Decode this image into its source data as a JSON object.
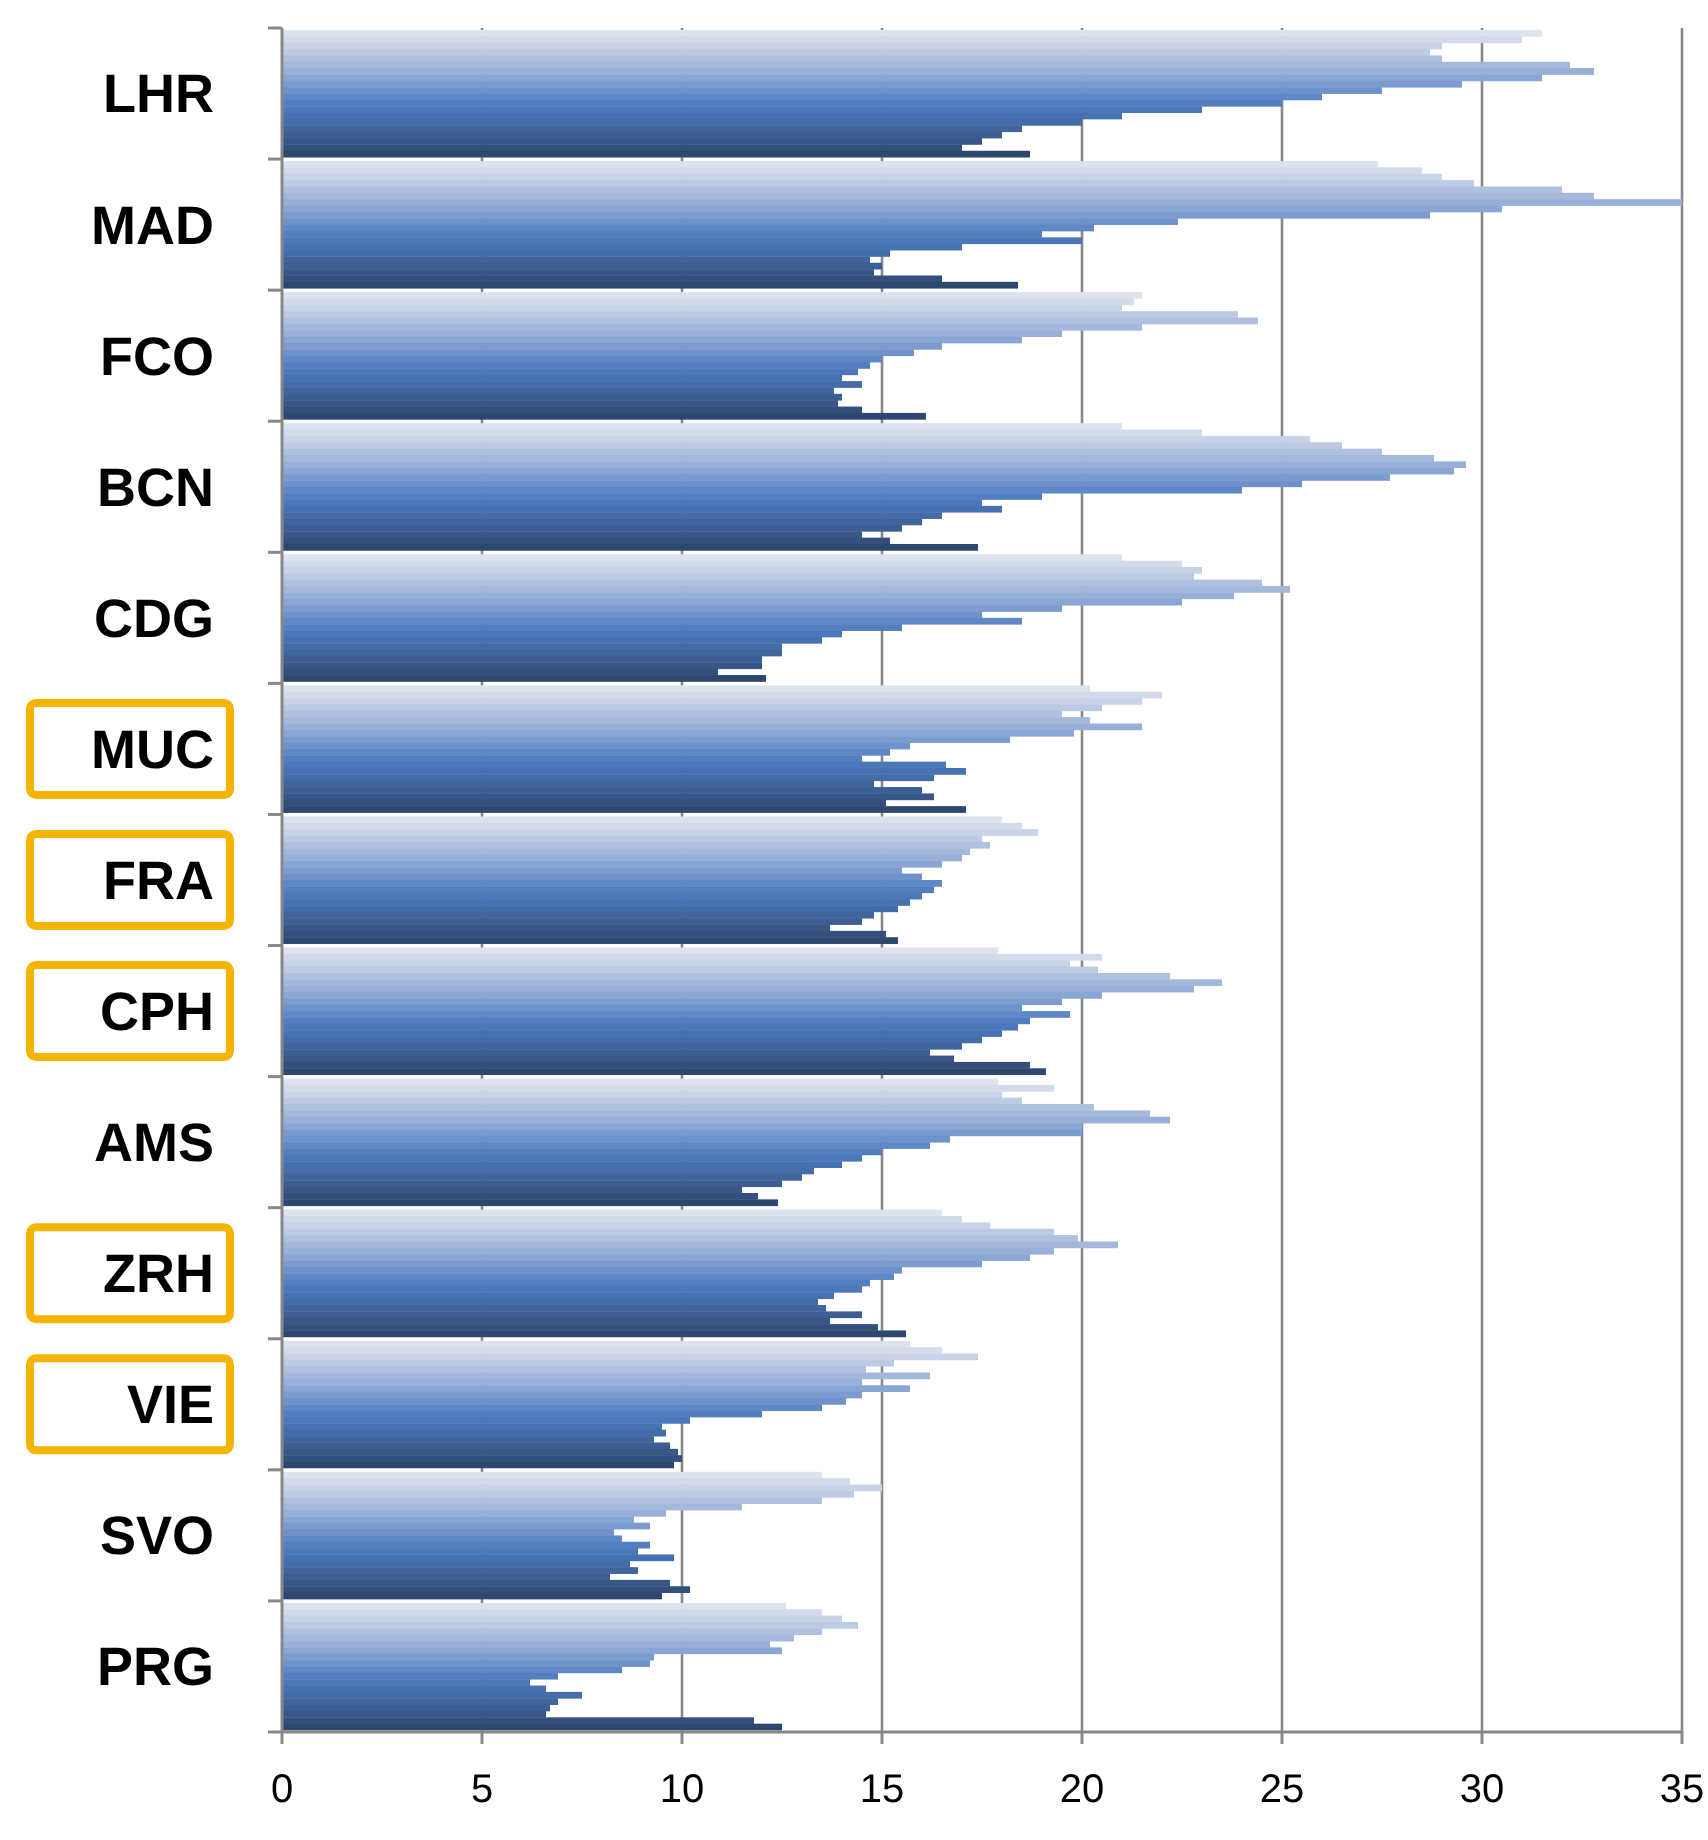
{
  "chart_data": {
    "type": "bar",
    "orientation": "horizontal",
    "categories": [
      "LHR",
      "MAD",
      "FCO",
      "BCN",
      "CDG",
      "MUC",
      "FRA",
      "CPH",
      "AMS",
      "ZRH",
      "VIE",
      "SVO",
      "PRG"
    ],
    "xlim": [
      0,
      35
    ],
    "xticks": [
      0,
      5,
      10,
      15,
      20,
      25,
      30,
      35
    ],
    "grid": "x",
    "series": [
      {
        "color": "#dde3ee",
        "values": [
          31.5,
          27.4,
          21.5,
          21,
          21,
          20.2,
          18,
          17.9,
          17.9,
          16.5,
          15.7,
          13.5,
          12.6
        ]
      },
      {
        "color": "#d3dbeb",
        "values": [
          31,
          28.5,
          21.3,
          23,
          22.5,
          22,
          18.5,
          20.5,
          19.3,
          17,
          16.5,
          14.2,
          13.5
        ]
      },
      {
        "color": "#c8d3e8",
        "values": [
          29,
          29,
          21,
          25.7,
          23,
          21.5,
          18.9,
          19.7,
          18,
          17.7,
          17.4,
          15,
          14
        ]
      },
      {
        "color": "#bccae4",
        "values": [
          28.7,
          29.8,
          23.9,
          26.5,
          22.8,
          20.5,
          17.5,
          20.4,
          18.5,
          19.3,
          15.3,
          14.3,
          14.4
        ]
      },
      {
        "color": "#b0c1e0",
        "values": [
          29,
          32,
          24.4,
          27.5,
          24.5,
          19.5,
          17.7,
          22.2,
          20.3,
          19.9,
          14.6,
          13.5,
          13.5
        ]
      },
      {
        "color": "#a4b8dc",
        "values": [
          32.2,
          32.8,
          21.5,
          28.8,
          25.2,
          20.2,
          17.2,
          23.5,
          21.7,
          20.9,
          16.2,
          11.5,
          12.8
        ]
      },
      {
        "color": "#98afd8",
        "values": [
          32.8,
          35,
          19.5,
          29.6,
          23.8,
          21.5,
          17,
          22.8,
          22.2,
          19.3,
          14.5,
          9.6,
          12.2
        ]
      },
      {
        "color": "#8aa6d4",
        "values": [
          31.5,
          30.5,
          18.5,
          29.3,
          22.5,
          19.8,
          16.5,
          20.5,
          20,
          18.7,
          15.7,
          8.8,
          12.5
        ]
      },
      {
        "color": "#7c9cd0",
        "values": [
          29.5,
          28.7,
          16.5,
          27.7,
          19.5,
          18.2,
          15.5,
          19.5,
          20,
          17.5,
          14.5,
          9.2,
          9.3
        ]
      },
      {
        "color": "#6e92cb",
        "values": [
          27.5,
          22.4,
          15.8,
          25.5,
          17.5,
          15.7,
          16,
          18.5,
          16.7,
          15.5,
          14.1,
          8.3,
          9.2
        ]
      },
      {
        "color": "#6088c6",
        "values": [
          26,
          20.3,
          15,
          24,
          18.5,
          15.2,
          16.5,
          19.7,
          16.2,
          15.3,
          13.5,
          8.5,
          8.5
        ]
      },
      {
        "color": "#537fc1",
        "values": [
          25,
          19,
          14.7,
          19,
          15.5,
          14.5,
          16.3,
          18.7,
          15,
          14.7,
          12,
          9.2,
          6.9
        ]
      },
      {
        "color": "#4a78bb",
        "values": [
          23,
          20,
          14.4,
          17.5,
          14,
          16.6,
          16,
          18.4,
          14.5,
          14.5,
          10.2,
          8.9,
          6.2
        ]
      },
      {
        "color": "#4672b2",
        "values": [
          21,
          17,
          14,
          18,
          13.5,
          17.1,
          15.7,
          18,
          14,
          13.8,
          9.5,
          9.8,
          6.6
        ]
      },
      {
        "color": "#436ca8",
        "values": [
          20,
          15.2,
          14.5,
          16.5,
          12.5,
          16.3,
          15.4,
          17.5,
          13.3,
          13.4,
          9.6,
          8.7,
          7.5
        ]
      },
      {
        "color": "#40659d",
        "values": [
          18.5,
          14.7,
          13.8,
          16,
          12.5,
          14.8,
          14.8,
          17,
          13,
          13.6,
          9.3,
          8.9,
          6.9
        ]
      },
      {
        "color": "#3c5e92",
        "values": [
          18,
          15,
          14,
          15.5,
          12,
          16,
          14.5,
          16.2,
          12.5,
          14.5,
          9.7,
          8.2,
          6.7
        ]
      },
      {
        "color": "#385786",
        "values": [
          17.5,
          14.8,
          13.9,
          14.5,
          12,
          16.3,
          13.7,
          16.8,
          11.5,
          13.7,
          9.9,
          9.7,
          6.6
        ]
      },
      {
        "color": "#334f7b",
        "values": [
          17,
          16.5,
          14.5,
          15.2,
          10.9,
          15.1,
          15.1,
          18.7,
          11.9,
          14.9,
          10,
          10.2,
          11.8
        ]
      },
      {
        "color": "#2e476f",
        "values": [
          18.7,
          18.4,
          16.1,
          17.4,
          12.1,
          17.1,
          15.4,
          19.1,
          12.4,
          15.6,
          9.8,
          9.5,
          12.5
        ]
      }
    ]
  }
}
